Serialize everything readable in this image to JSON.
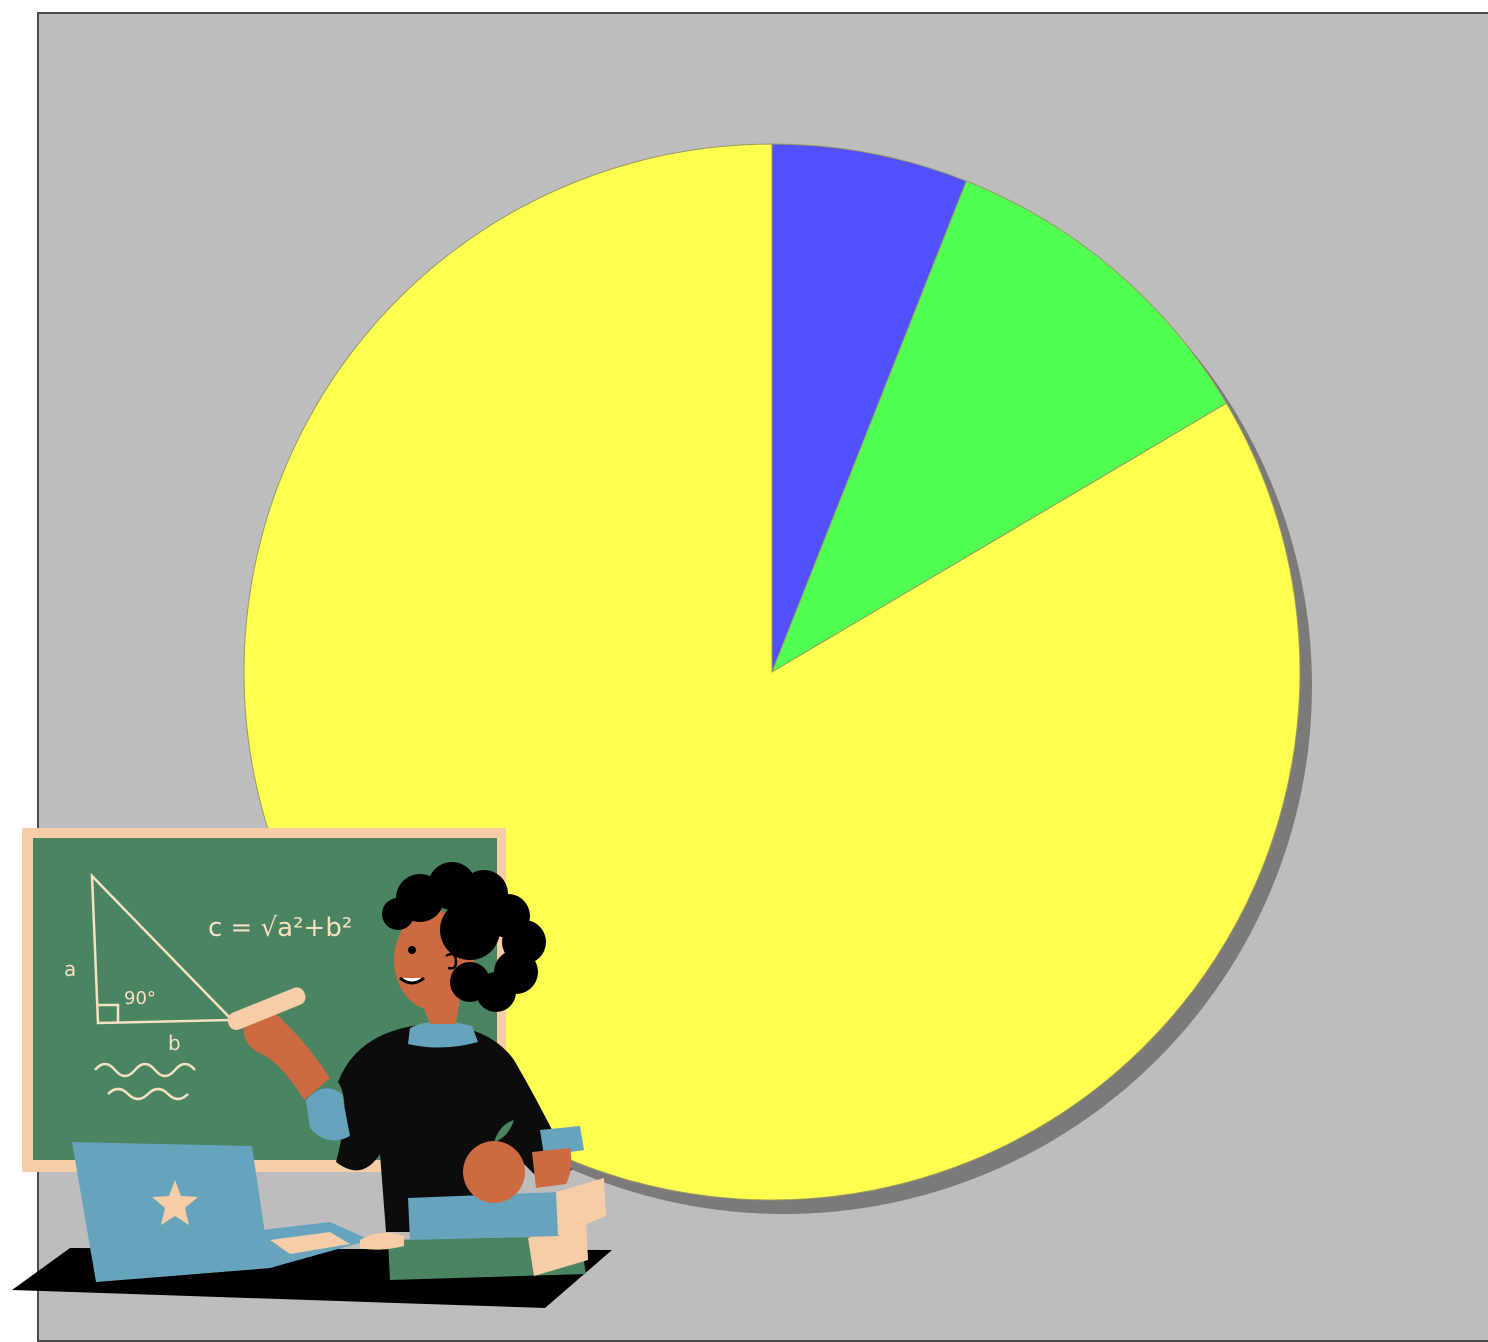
{
  "chart_data": {
    "type": "pie",
    "title": "",
    "start_angle_deg": 0,
    "direction": "clockwise",
    "slices": [
      {
        "value": 6.0,
        "color": "#5050ff"
      },
      {
        "value": 10.5,
        "color": "#50ff50"
      },
      {
        "value": 83.5,
        "color": "#ffff50"
      }
    ],
    "shadow": true,
    "legend": "none",
    "background": "#bdbdbd"
  },
  "illustration": {
    "description_icon": "teacher-at-chalkboard-illustration",
    "chalkboard": {
      "formula": "c = √a²+b²",
      "side_a": "a",
      "side_b": "b",
      "angle": "90°"
    },
    "colors": {
      "board": "#4a8460",
      "frame": "#f6cda6",
      "laptop": "#66a3bd",
      "skin": "#cd6a42",
      "dress": "#0c0c0c",
      "books_top": "#66a3bd",
      "books_bottom": "#4a8460"
    }
  }
}
